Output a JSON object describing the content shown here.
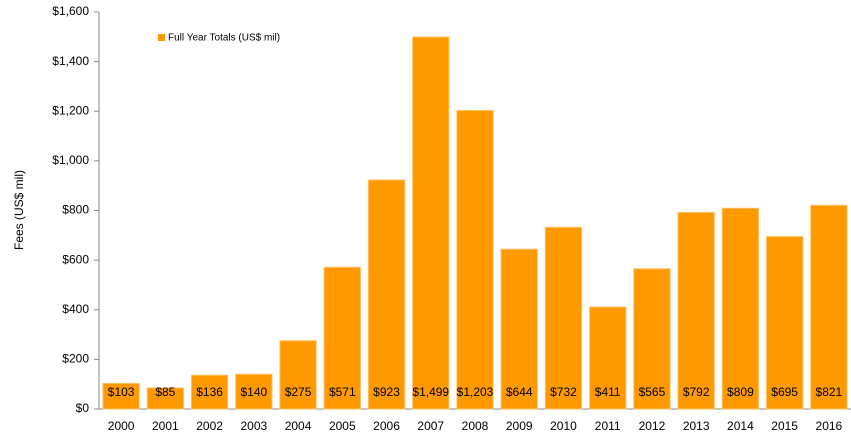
{
  "chart_data": {
    "type": "bar",
    "y_label": "Fees (US$ mil)",
    "legend": "Full Year Totals (US$ mil)",
    "legend_position": "upper left",
    "color": "#ff9900",
    "grid": false,
    "categories": [
      "2000",
      "2001",
      "2002",
      "2003",
      "2004",
      "2005",
      "2006",
      "2007",
      "2008",
      "2009",
      "2010",
      "2011",
      "2012",
      "2013",
      "2014",
      "2015",
      "2016"
    ],
    "values": [
      103,
      85,
      136,
      140,
      275,
      571,
      923,
      1499,
      1203,
      644,
      732,
      411,
      565,
      792,
      809,
      695,
      821
    ],
    "value_labels": [
      "$103",
      "$85",
      "$136",
      "$140",
      "$275",
      "$571",
      "$923",
      "$1,499",
      "$1,203",
      "$644",
      "$732",
      "$411",
      "$565",
      "$792",
      "$809",
      "$695",
      "$821"
    ],
    "ylim": [
      0,
      1600
    ],
    "yticks": [
      {
        "value": 0,
        "label": "$0"
      },
      {
        "value": 200,
        "label": "$200"
      },
      {
        "value": 400,
        "label": "$400"
      },
      {
        "value": 600,
        "label": "$600"
      },
      {
        "value": 800,
        "label": "$800"
      },
      {
        "value": 1000,
        "label": "$1,000"
      },
      {
        "value": 1200,
        "label": "$1,200"
      },
      {
        "value": 1400,
        "label": "$1,400"
      },
      {
        "value": 1600,
        "label": "$1,600"
      }
    ]
  }
}
